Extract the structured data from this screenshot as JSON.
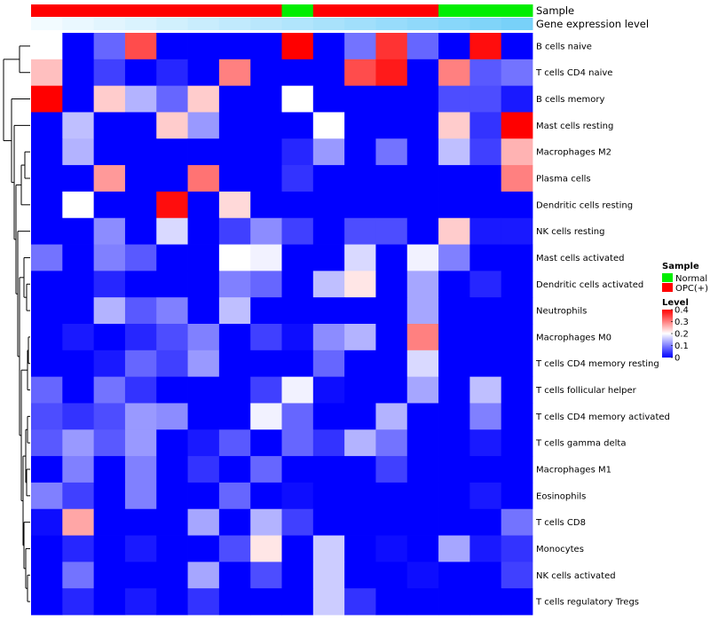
{
  "chart_data": {
    "type": "heatmap",
    "annotations": {
      "sample_label": "Sample",
      "gene_label": "Gene expression level"
    },
    "columns": [
      {
        "sample": "OPC(+)",
        "gene": 0.0
      },
      {
        "sample": "OPC(+)",
        "gene": 0.05
      },
      {
        "sample": "OPC(+)",
        "gene": 0.1
      },
      {
        "sample": "OPC(+)",
        "gene": 0.15
      },
      {
        "sample": "OPC(+)",
        "gene": 0.2
      },
      {
        "sample": "OPC(+)",
        "gene": 0.25
      },
      {
        "sample": "OPC(+)",
        "gene": 0.3
      },
      {
        "sample": "OPC(+)",
        "gene": 0.35
      },
      {
        "sample": "Normal",
        "gene": 0.4
      },
      {
        "sample": "OPC(+)",
        "gene": 0.45
      },
      {
        "sample": "OPC(+)",
        "gene": 0.5
      },
      {
        "sample": "OPC(+)",
        "gene": 0.55
      },
      {
        "sample": "OPC(+)",
        "gene": 0.6
      },
      {
        "sample": "Normal",
        "gene": 0.65
      },
      {
        "sample": "Normal",
        "gene": 0.7
      },
      {
        "sample": "Normal",
        "gene": 0.75
      }
    ],
    "rows": [
      "B cells naive",
      "T cells CD4 naive",
      "B cells memory",
      "Mast cells resting",
      "Macrophages M2",
      "Plasma cells",
      "Dendritic cells resting",
      "NK cells resting",
      "Mast cells activated",
      "Dendritic cells activated",
      "Neutrophils",
      "Macrophages M0",
      "T cells CD4 memory resting",
      "T cells follicular helper",
      "T cells CD4 memory activated",
      "T cells gamma delta",
      "Macrophages M1",
      "Eosinophils",
      "T cells CD8",
      "Monocytes",
      "NK cells activated",
      "T cells regulatory  Tregs"
    ],
    "values": [
      [
        0.2,
        0,
        0.08,
        0.34,
        0,
        0,
        0,
        0,
        0.4,
        0,
        0.09,
        0.36,
        0.08,
        0,
        0.39,
        0
      ],
      [
        0.25,
        0,
        0.05,
        0,
        0.03,
        0,
        0.3,
        0,
        0,
        0,
        0.34,
        0.38,
        0,
        0.3,
        0.07,
        0.09
      ],
      [
        0.4,
        0,
        0.24,
        0.14,
        0.08,
        0.24,
        0,
        0,
        0.2,
        0,
        0,
        0,
        0,
        0.06,
        0.06,
        0.02
      ],
      [
        0,
        0.15,
        0,
        0,
        0.24,
        0.12,
        0,
        0,
        0,
        0.2,
        0,
        0,
        0,
        0.24,
        0.04,
        0.4
      ],
      [
        0,
        0.14,
        0,
        0,
        0,
        0,
        0,
        0,
        0.03,
        0.12,
        0,
        0.09,
        0,
        0.15,
        0.05,
        0.26
      ],
      [
        0,
        0,
        0.28,
        0,
        0,
        0.31,
        0,
        0,
        0.04,
        0,
        0,
        0,
        0,
        0,
        0,
        0.3
      ],
      [
        0,
        0.2,
        0,
        0,
        0.39,
        0,
        0.23,
        0,
        0,
        0,
        0,
        0,
        0,
        0,
        0,
        0
      ],
      [
        0,
        0,
        0.11,
        0,
        0.17,
        0,
        0.05,
        0.11,
        0.05,
        0,
        0.06,
        0.06,
        0,
        0.24,
        0.02,
        0.02
      ],
      [
        0.09,
        0,
        0.1,
        0.07,
        0,
        0,
        0.2,
        0.19,
        0,
        0,
        0.17,
        0,
        0.19,
        0.1,
        0,
        0
      ],
      [
        0,
        0,
        0.03,
        0,
        0,
        0,
        0.1,
        0.08,
        0,
        0.15,
        0.22,
        0,
        0.13,
        0,
        0.03,
        0
      ],
      [
        0,
        0,
        0.14,
        0.07,
        0.1,
        0,
        0.15,
        0,
        0,
        0,
        0,
        0,
        0.13,
        0,
        0,
        0
      ],
      [
        0,
        0.02,
        0,
        0.03,
        0.06,
        0.1,
        0,
        0.05,
        0.01,
        0.11,
        0.14,
        0,
        0.3,
        0,
        0,
        0
      ],
      [
        0,
        0,
        0.02,
        0.08,
        0.05,
        0.12,
        0,
        0,
        0,
        0.08,
        0,
        0,
        0.17,
        0,
        0,
        0
      ],
      [
        0.08,
        0,
        0.09,
        0.04,
        0,
        0,
        0,
        0.05,
        0.19,
        0.01,
        0,
        0,
        0.13,
        0,
        0.15,
        0
      ],
      [
        0.06,
        0.04,
        0.06,
        0.12,
        0.11,
        0,
        0,
        0.19,
        0.08,
        0,
        0,
        0.14,
        0,
        0,
        0.1,
        0
      ],
      [
        0.07,
        0.12,
        0.07,
        0.12,
        0,
        0.02,
        0.07,
        0,
        0.08,
        0.04,
        0.14,
        0.09,
        0,
        0,
        0.02,
        0
      ],
      [
        0,
        0.1,
        0,
        0.1,
        0,
        0.04,
        0,
        0.08,
        0,
        0,
        0,
        0.05,
        0,
        0,
        0,
        0
      ],
      [
        0.1,
        0.05,
        0,
        0.1,
        0,
        0,
        0.08,
        0,
        0.01,
        0,
        0,
        0,
        0,
        0,
        0.02,
        0
      ],
      [
        0.01,
        0.27,
        0,
        0,
        0,
        0.13,
        0,
        0.14,
        0.05,
        0,
        0,
        0,
        0,
        0,
        0,
        0.09
      ],
      [
        0,
        0.03,
        0,
        0.02,
        0,
        0,
        0.06,
        0.22,
        0,
        0.16,
        0,
        0.01,
        0,
        0.13,
        0.02,
        0.04
      ],
      [
        0,
        0.09,
        0,
        0,
        0,
        0.13,
        0,
        0.06,
        0,
        0.16,
        0,
        0,
        0.01,
        0,
        0,
        0.05
      ],
      [
        0,
        0.03,
        0,
        0.02,
        0,
        0.04,
        0,
        0,
        0,
        0.16,
        0.04,
        0,
        0,
        0,
        0,
        0
      ]
    ],
    "color_scale": {
      "min": 0,
      "mid": 0.2,
      "max": 0.4,
      "low": "#0000ff",
      "midcolor": "#ffffff",
      "high": "#ff0000"
    },
    "sample_colors": {
      "Normal": "#00ee00",
      "OPC(+)": "#ff0000"
    },
    "gene_colors": {
      "low": "#f2fbff",
      "high": "#4fc3f7"
    },
    "legend": {
      "sample_title": "Sample",
      "sample_items": [
        {
          "label": "Normal",
          "color": "#00ee00"
        },
        {
          "label": "OPC(+)",
          "color": "#ff0000"
        }
      ],
      "level_title": "Level",
      "level_ticks": [
        {
          "label": "0.4",
          "value": 0.4
        },
        {
          "label": "0.3",
          "value": 0.3
        },
        {
          "label": "0.2",
          "value": 0.2
        },
        {
          "label": "0.1",
          "value": 0.1
        },
        {
          "label": "0",
          "value": 0
        }
      ]
    }
  }
}
